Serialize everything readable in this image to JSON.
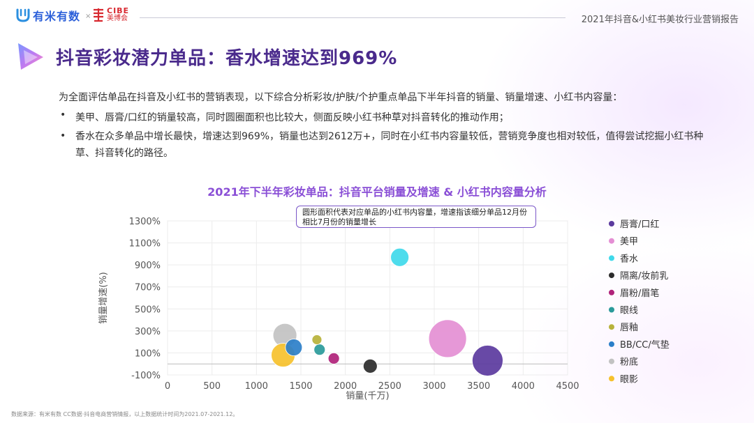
{
  "header": {
    "brand_youmi": "有米有数",
    "brand_sep": "×",
    "brand_cibe_en": "CIBE",
    "brand_cibe_cn": "美博会",
    "report_title": "2021年抖音&小红书美妆行业营销报告"
  },
  "title": "抖音彩妆潜力单品：香水增速达到969%",
  "intro": "为全面评估单品在抖音及小红书的营销表现，以下综合分析彩妆/护肤/个护重点单品下半年抖音的销量、销量增速、小红书内容量：",
  "bullets": [
    "美甲、唇膏/口红的销量较高，同时圆圈面积也比较大，侧面反映小红书种草对抖音转化的推动作用；",
    "香水在众多单品中增长最快，增速达到969%，销量也达到2612万+，同时在小红书内容量较低，营销竞争度也相对较低，值得尝试挖掘小红书种草、抖音转化的路径。"
  ],
  "bullet_symbol": "•",
  "footer": "数据来源：有米有数 CC数据·抖音电商营销情报，以上数据统计时间为2021.07-2021.12。",
  "chart_data": {
    "type": "scatter",
    "title": "2021年下半年彩妆单品：抖音平台销量及增速 & 小红书内容量分析",
    "annotation": "圆形面积代表对应单品的小红书内容量，增速指该细分单品12月份相比7月份的销量增长",
    "xlabel": "销量(千万)",
    "ylabel": "销量增速(%)",
    "xlim": [
      0,
      4500
    ],
    "ylim": [
      -100,
      1300
    ],
    "x_ticks": [
      0,
      500,
      1000,
      1500,
      2000,
      2500,
      3000,
      3500,
      4000,
      4500
    ],
    "y_ticks": [
      -100,
      100,
      300,
      500,
      700,
      900,
      1100,
      1300
    ],
    "y_tick_labels": [
      "-100%",
      "100%",
      "300%",
      "500%",
      "700%",
      "900%",
      "1100%",
      "1300%"
    ],
    "legend_position": "right",
    "series": [
      {
        "name": "唇膏/口红",
        "color": "#5b3a9e",
        "x": 3600,
        "y": 30,
        "r": 22
      },
      {
        "name": "美甲",
        "color": "#e48fd4",
        "x": 3150,
        "y": 230,
        "r": 27
      },
      {
        "name": "香水",
        "color": "#3fd9ea",
        "x": 2612,
        "y": 969,
        "r": 13
      },
      {
        "name": "隔离/妆前乳",
        "color": "#2b2b2b",
        "x": 2280,
        "y": -20,
        "r": 10
      },
      {
        "name": "眉粉/眉笔",
        "color": "#b0227a",
        "x": 1870,
        "y": 50,
        "r": 8
      },
      {
        "name": "眼线",
        "color": "#2a9a9a",
        "x": 1710,
        "y": 130,
        "r": 8
      },
      {
        "name": "唇釉",
        "color": "#b7b23a",
        "x": 1680,
        "y": 220,
        "r": 7
      },
      {
        "name": "BB/CC/气垫",
        "color": "#2b7fc9",
        "x": 1420,
        "y": 150,
        "r": 12
      },
      {
        "name": "粉底",
        "color": "#c2c2c2",
        "x": 1320,
        "y": 260,
        "r": 17
      },
      {
        "name": "眼影",
        "color": "#f6c12c",
        "x": 1300,
        "y": 80,
        "r": 17
      }
    ]
  }
}
